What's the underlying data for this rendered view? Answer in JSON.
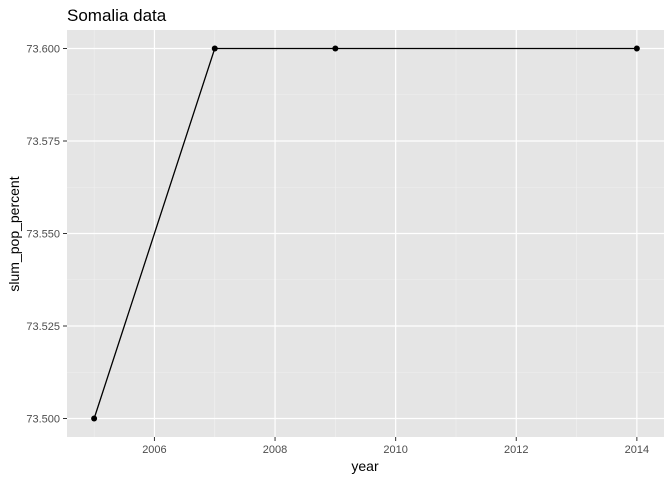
{
  "chart_data": {
    "type": "line",
    "title": "Somalia data",
    "xlabel": "year",
    "ylabel": "slum_pop_percent",
    "x": [
      2005,
      2007,
      2009,
      2014
    ],
    "y": [
      73.5,
      73.6,
      73.6,
      73.6
    ],
    "xlim": [
      2004.55,
      2014.45
    ],
    "ylim": [
      73.495,
      73.605
    ],
    "x_ticks": [
      2006,
      2008,
      2010,
      2012,
      2014
    ],
    "x_tick_labels": [
      "2006",
      "2008",
      "2010",
      "2012",
      "2014"
    ],
    "y_ticks": [
      73.5,
      73.525,
      73.55,
      73.575,
      73.6
    ],
    "y_tick_labels": [
      "73.500",
      "73.525",
      "73.550",
      "73.575",
      "73.600"
    ],
    "grid": true,
    "legend": "none",
    "colors": {
      "panel_background": "#e5e5e5",
      "grid_major": "#ffffff",
      "grid_minor": "#f0f0f0",
      "line": "#000000",
      "points": "#000000",
      "tick_text": "#4d4d4d",
      "tick_mark": "#333333"
    }
  }
}
